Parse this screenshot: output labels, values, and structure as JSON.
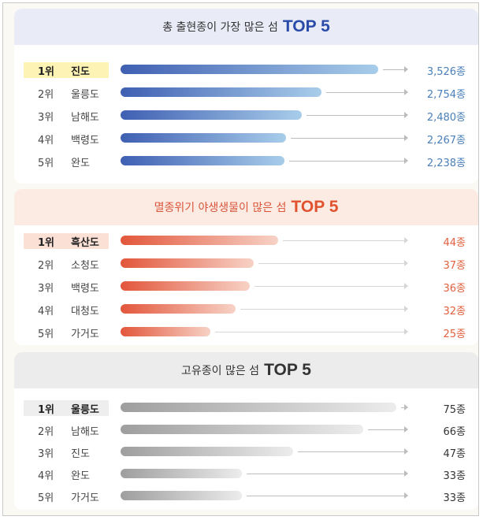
{
  "chart_data": [
    {
      "type": "bar",
      "title": "총 출현종이 가장 많은 섬",
      "title_top": "TOP 5",
      "ranks": [
        "1위",
        "2위",
        "3위",
        "4위",
        "5위"
      ],
      "categories": [
        "진도",
        "울릉도",
        "남해도",
        "백령도",
        "완도"
      ],
      "values": [
        3526,
        2754,
        2480,
        2267,
        2238
      ],
      "value_labels": [
        "3,526종",
        "2,754종",
        "2,480종",
        "2,267종",
        "2,238종"
      ],
      "xlim": [
        0,
        3526
      ],
      "colors": {
        "head_bg": "#e9ecf7",
        "title": "#333333",
        "top": "#2b4ba8",
        "bar_start": "#3f5fb2",
        "bar_end": "#a8cdea",
        "highlight": "#fdf3b5",
        "value": "#4a7fb8",
        "line": "#bcbcbc"
      }
    },
    {
      "type": "bar",
      "title": "멸종위기 야생생물이 많은 섬",
      "title_top": "TOP 5",
      "ranks": [
        "1위",
        "2위",
        "3위",
        "4위",
        "5위"
      ],
      "categories": [
        "흑산도",
        "소청도",
        "백령도",
        "대청도",
        "가거도"
      ],
      "values": [
        44,
        37,
        36,
        32,
        25
      ],
      "value_labels": [
        "44종",
        "37종",
        "36종",
        "32종",
        "25종"
      ],
      "xlim": [
        0,
        72
      ],
      "colors": {
        "head_bg": "#fcebe3",
        "title": "#d9543a",
        "top": "#e1532f",
        "bar_start": "#e2563b",
        "bar_end": "#f7d2c6",
        "highlight": "#fbe0d6",
        "value": "#e0603f",
        "line": "#d6d6d6"
      }
    },
    {
      "type": "bar",
      "title": "고유종이 많은 섬",
      "title_top": "TOP 5",
      "ranks": [
        "1위",
        "2위",
        "3위",
        "4위",
        "5위"
      ],
      "categories": [
        "울릉도",
        "남해도",
        "진도",
        "완도",
        "가거도"
      ],
      "values": [
        75,
        66,
        47,
        33,
        33
      ],
      "value_labels": [
        "75종",
        "66종",
        "47종",
        "33종",
        "33종"
      ],
      "xlim": [
        0,
        75
      ],
      "colors": {
        "head_bg": "#ececec",
        "title": "#333333",
        "top": "#333333",
        "bar_start": "#9e9e9e",
        "bar_end": "#ececec",
        "highlight": "#eeeeee",
        "value": "#333333",
        "line": "#bcbcbc"
      }
    }
  ]
}
